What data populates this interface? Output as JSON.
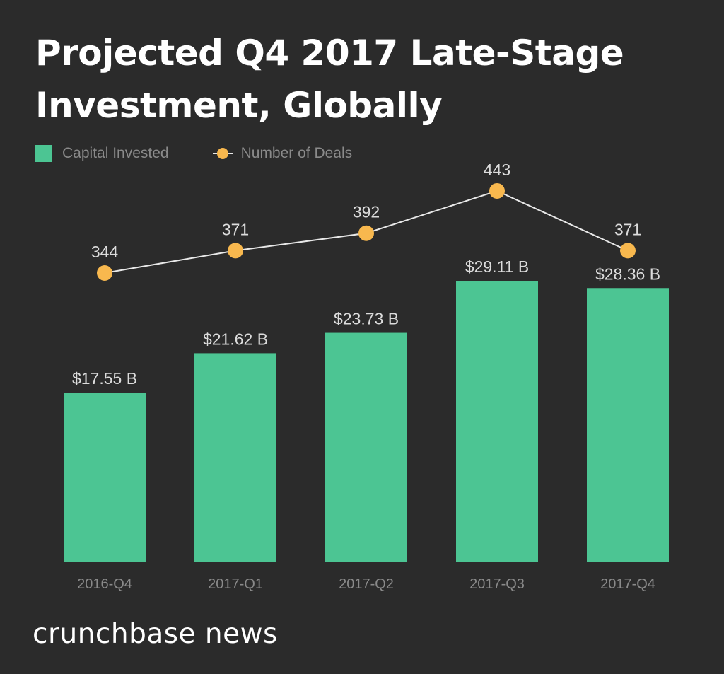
{
  "title": "Projected Q4 2017 Late-Stage Investment, Globally",
  "brand": "crunchbase news",
  "colors": {
    "background": "#2b2b2b",
    "bar": "#4cc593",
    "line": "#e8e8e8",
    "marker": "#f8b84e",
    "label": "#dcdcdc",
    "axis_label": "#8a8a8a"
  },
  "chart_data": {
    "type": "bar",
    "categories": [
      "2016-Q4",
      "2017-Q1",
      "2017-Q2",
      "2017-Q3",
      "2017-Q4"
    ],
    "series": [
      {
        "name": "Capital Invested",
        "type": "bar",
        "values": [
          17.55,
          21.62,
          23.73,
          29.11,
          28.36
        ],
        "labels": [
          "$17.55 B",
          "$21.62 B",
          "$23.73 B",
          "$29.11 B",
          "$28.36 B"
        ]
      },
      {
        "name": "Number of Deals",
        "type": "line",
        "values": [
          344,
          371,
          392,
          443,
          371
        ],
        "labels": [
          "344",
          "371",
          "392",
          "443",
          "371"
        ]
      }
    ],
    "legend": "top-left",
    "grid": false
  }
}
